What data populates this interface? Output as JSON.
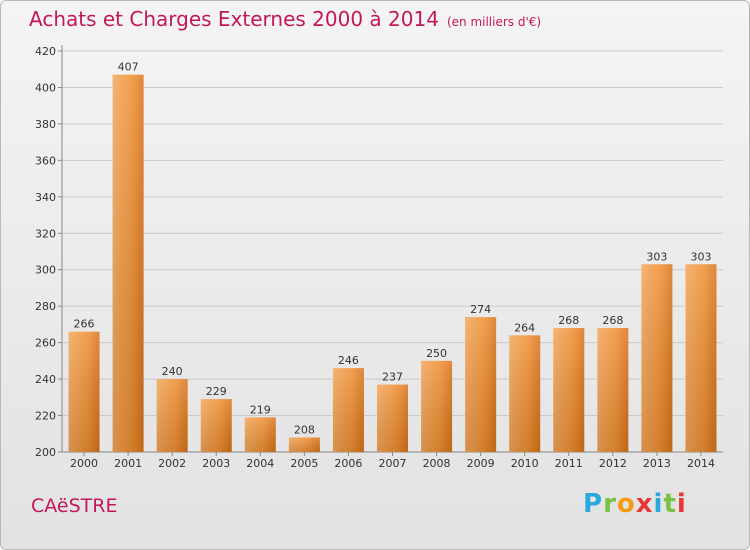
{
  "header": {
    "title": "Achats et Charges Externes 2000 à 2014",
    "unit": "(en milliers d'€)"
  },
  "footer": {
    "commune": "CAëSTRE",
    "logo_letters": [
      "P",
      "r",
      "o",
      "x",
      "i",
      "t",
      "i"
    ],
    "logo_colors": [
      "#29a8e0",
      "#7bc143",
      "#f39c12",
      "#e53935",
      "#29a8e0",
      "#7bc143",
      "#e53935"
    ]
  },
  "chart_data": {
    "type": "bar",
    "title": "Achats et Charges Externes 2000 à 2014",
    "subtitle": "(en milliers d'€)",
    "categories": [
      "2000",
      "2001",
      "2002",
      "2003",
      "2004",
      "2005",
      "2006",
      "2007",
      "2008",
      "2009",
      "2010",
      "2011",
      "2012",
      "2013",
      "2014"
    ],
    "values": [
      266,
      407,
      240,
      229,
      219,
      208,
      246,
      237,
      250,
      274,
      264,
      268,
      268,
      303,
      303
    ],
    "ylim": [
      200,
      420
    ],
    "yticks": [
      200,
      220,
      240,
      260,
      280,
      300,
      320,
      340,
      360,
      380,
      400,
      420
    ],
    "grid": true,
    "bar_color": "#ee8a2c"
  }
}
